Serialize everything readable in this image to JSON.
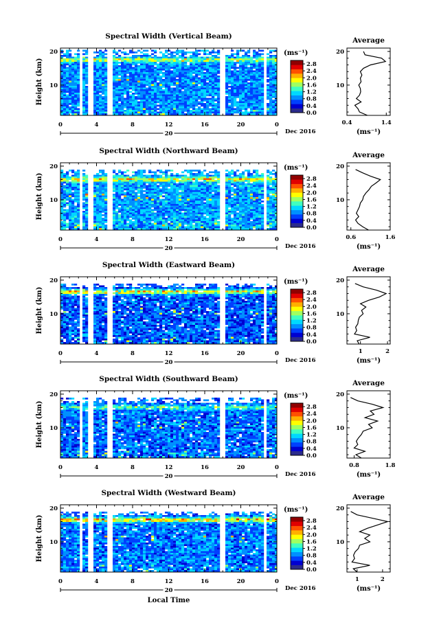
{
  "figure": {
    "colorbar": {
      "unit": "(ms⁻¹)",
      "ticks": [
        "0.0",
        "0.4",
        "0.8",
        "1.2",
        "1.6",
        "2.0",
        "2.4",
        "2.8"
      ],
      "range": [
        0,
        3.0
      ],
      "colors": [
        "#2b2b8c",
        "#0000d0",
        "#0040ff",
        "#0090ff",
        "#00d8ff",
        "#40ffc0",
        "#a0ff60",
        "#ffff00",
        "#ffb000",
        "#ff5000",
        "#e00000",
        "#900000"
      ]
    },
    "xaxis": {
      "ticks": [
        "0",
        "4",
        "8",
        "12",
        "16",
        "20",
        "0"
      ],
      "day": "20",
      "month_label": "Dec 2016",
      "label": "Local Time"
    },
    "yaxis": {
      "label": "Height (km)",
      "ticks": [
        "10",
        "20"
      ]
    },
    "profile_title": "Average",
    "profile_xlabel": "(ms⁻¹)"
  },
  "chart_data": [
    {
      "type": "heatmap",
      "title": "Spectral Width (Vertical Beam)",
      "xlabel": "Local Time",
      "ylabel": "Height (km)",
      "xlim": [
        0,
        24
      ],
      "ylim": [
        1,
        21
      ],
      "gaps_hours": [
        [
          2.0,
          2.4
        ],
        [
          3.2,
          3.6
        ],
        [
          5.3,
          5.9
        ],
        [
          17.8,
          18.2
        ],
        [
          22.6,
          23.0
        ]
      ],
      "top_height_km": 20.5,
      "base_level": 0.85,
      "layer_peak": 2.0,
      "layer_height_km": 17.5,
      "average_profile": {
        "title": "Average",
        "xlabel": "(ms⁻¹)",
        "xticks": [
          "0.4",
          "1.4"
        ],
        "xlim": [
          0.4,
          1.5
        ],
        "height_km": [
          1,
          2,
          3,
          4,
          5,
          6,
          7,
          8,
          9,
          10,
          11,
          12,
          13,
          14,
          15,
          16,
          17,
          18,
          19,
          20
        ],
        "values": [
          0.92,
          0.72,
          0.68,
          0.6,
          0.76,
          0.64,
          0.72,
          0.75,
          0.74,
          0.7,
          0.76,
          0.74,
          0.78,
          0.74,
          0.82,
          1.0,
          1.38,
          1.28,
          0.86,
          0.82
        ]
      }
    },
    {
      "type": "heatmap",
      "title": "Spectral Width (Northward Beam)",
      "xlabel": "Local Time",
      "ylabel": "Height (km)",
      "xlim": [
        0,
        24
      ],
      "ylim": [
        1,
        21
      ],
      "gaps_hours": [
        [
          2.0,
          2.4
        ],
        [
          3.2,
          3.6
        ],
        [
          5.3,
          5.9
        ],
        [
          17.8,
          18.2
        ],
        [
          22.6,
          23.0
        ]
      ],
      "top_height_km": 19.0,
      "base_level": 0.95,
      "layer_peak": 2.2,
      "layer_height_km": 16.0,
      "average_profile": {
        "title": "Average",
        "xlabel": "(ms⁻¹)",
        "xticks": [
          "0.6",
          "1.6"
        ],
        "xlim": [
          0.5,
          1.6
        ],
        "height_km": [
          1,
          2,
          3,
          4,
          5,
          6,
          7,
          8,
          9,
          10,
          11,
          12,
          13,
          14,
          15,
          16,
          17,
          18,
          19
        ],
        "values": [
          1.05,
          0.9,
          0.78,
          0.72,
          0.8,
          0.74,
          0.78,
          0.82,
          0.84,
          0.9,
          0.92,
          0.98,
          1.06,
          1.12,
          1.24,
          1.35,
          1.1,
          0.9,
          0.72
        ]
      }
    },
    {
      "type": "heatmap",
      "title": "Spectral Width (Eastward Beam)",
      "xlabel": "Local Time",
      "ylabel": "Height (km)",
      "xlim": [
        0,
        24
      ],
      "ylim": [
        1,
        21
      ],
      "gaps_hours": [
        [
          2.0,
          2.4
        ],
        [
          3.2,
          3.6
        ],
        [
          5.3,
          5.9
        ],
        [
          17.8,
          18.2
        ],
        [
          22.6,
          23.0
        ]
      ],
      "top_height_km": 19.0,
      "base_level": 0.7,
      "layer_peak": 2.3,
      "layer_height_km": 16.5,
      "average_profile": {
        "title": "Average",
        "xlabel": "(ms⁻¹)",
        "xticks": [
          "1",
          "2"
        ],
        "xlim": [
          0.5,
          2.1
        ],
        "height_km": [
          1,
          2,
          3,
          4,
          5,
          6,
          7,
          8,
          9,
          10,
          11,
          12,
          13,
          14,
          15,
          16,
          17,
          18,
          19
        ],
        "values": [
          0.95,
          0.88,
          1.35,
          0.78,
          0.86,
          0.82,
          0.9,
          0.92,
          0.96,
          1.1,
          1.04,
          1.2,
          1.0,
          1.3,
          1.7,
          1.95,
          1.6,
          1.1,
          0.8
        ]
      }
    },
    {
      "type": "heatmap",
      "title": "Spectral Width (Southward Beam)",
      "xlabel": "Local Time",
      "ylabel": "Height (km)",
      "xlim": [
        0,
        24
      ],
      "ylim": [
        1,
        21
      ],
      "gaps_hours": [
        [
          2.0,
          2.4
        ],
        [
          3.2,
          3.6
        ],
        [
          5.3,
          5.9
        ],
        [
          17.8,
          18.2
        ],
        [
          22.6,
          23.0
        ]
      ],
      "top_height_km": 19.0,
      "base_level": 0.75,
      "layer_peak": 1.6,
      "layer_height_km": 16.0,
      "average_profile": {
        "title": "Average",
        "xlabel": "(ms⁻¹)",
        "xticks": [
          "0.8",
          "1.8"
        ],
        "xlim": [
          0.6,
          1.8
        ],
        "height_km": [
          1,
          2,
          3,
          4,
          5,
          6,
          7,
          8,
          9,
          10,
          11,
          12,
          13,
          14,
          15,
          16,
          17,
          18,
          19
        ],
        "values": [
          1.0,
          0.85,
          1.1,
          0.8,
          0.9,
          0.86,
          0.92,
          1.0,
          1.05,
          1.3,
          1.2,
          1.45,
          1.1,
          1.35,
          1.25,
          1.6,
          1.3,
          0.9,
          0.7
        ]
      }
    },
    {
      "type": "heatmap",
      "title": "Spectral Width (Westward Beam)",
      "xlabel": "Local Time",
      "ylabel": "Height (km)",
      "xlim": [
        0,
        24
      ],
      "ylim": [
        1,
        21
      ],
      "gaps_hours": [
        [
          2.0,
          2.4
        ],
        [
          3.2,
          3.6
        ],
        [
          5.3,
          5.9
        ],
        [
          17.8,
          18.2
        ],
        [
          22.6,
          23.0
        ]
      ],
      "top_height_km": 19.0,
      "base_level": 0.8,
      "layer_peak": 2.4,
      "layer_height_km": 16.5,
      "average_profile": {
        "title": "Average",
        "xlabel": "(ms⁻¹)",
        "xticks": [
          "1",
          "2"
        ],
        "xlim": [
          0.6,
          2.3
        ],
        "height_km": [
          1,
          2,
          3,
          4,
          5,
          6,
          7,
          8,
          9,
          10,
          11,
          12,
          13,
          14,
          15,
          16,
          17,
          18,
          19
        ],
        "values": [
          1.0,
          0.85,
          1.5,
          0.8,
          0.9,
          0.86,
          0.92,
          1.05,
          1.1,
          1.5,
          1.3,
          1.5,
          1.1,
          1.4,
          1.8,
          2.2,
          1.6,
          1.0,
          0.75
        ]
      }
    }
  ]
}
